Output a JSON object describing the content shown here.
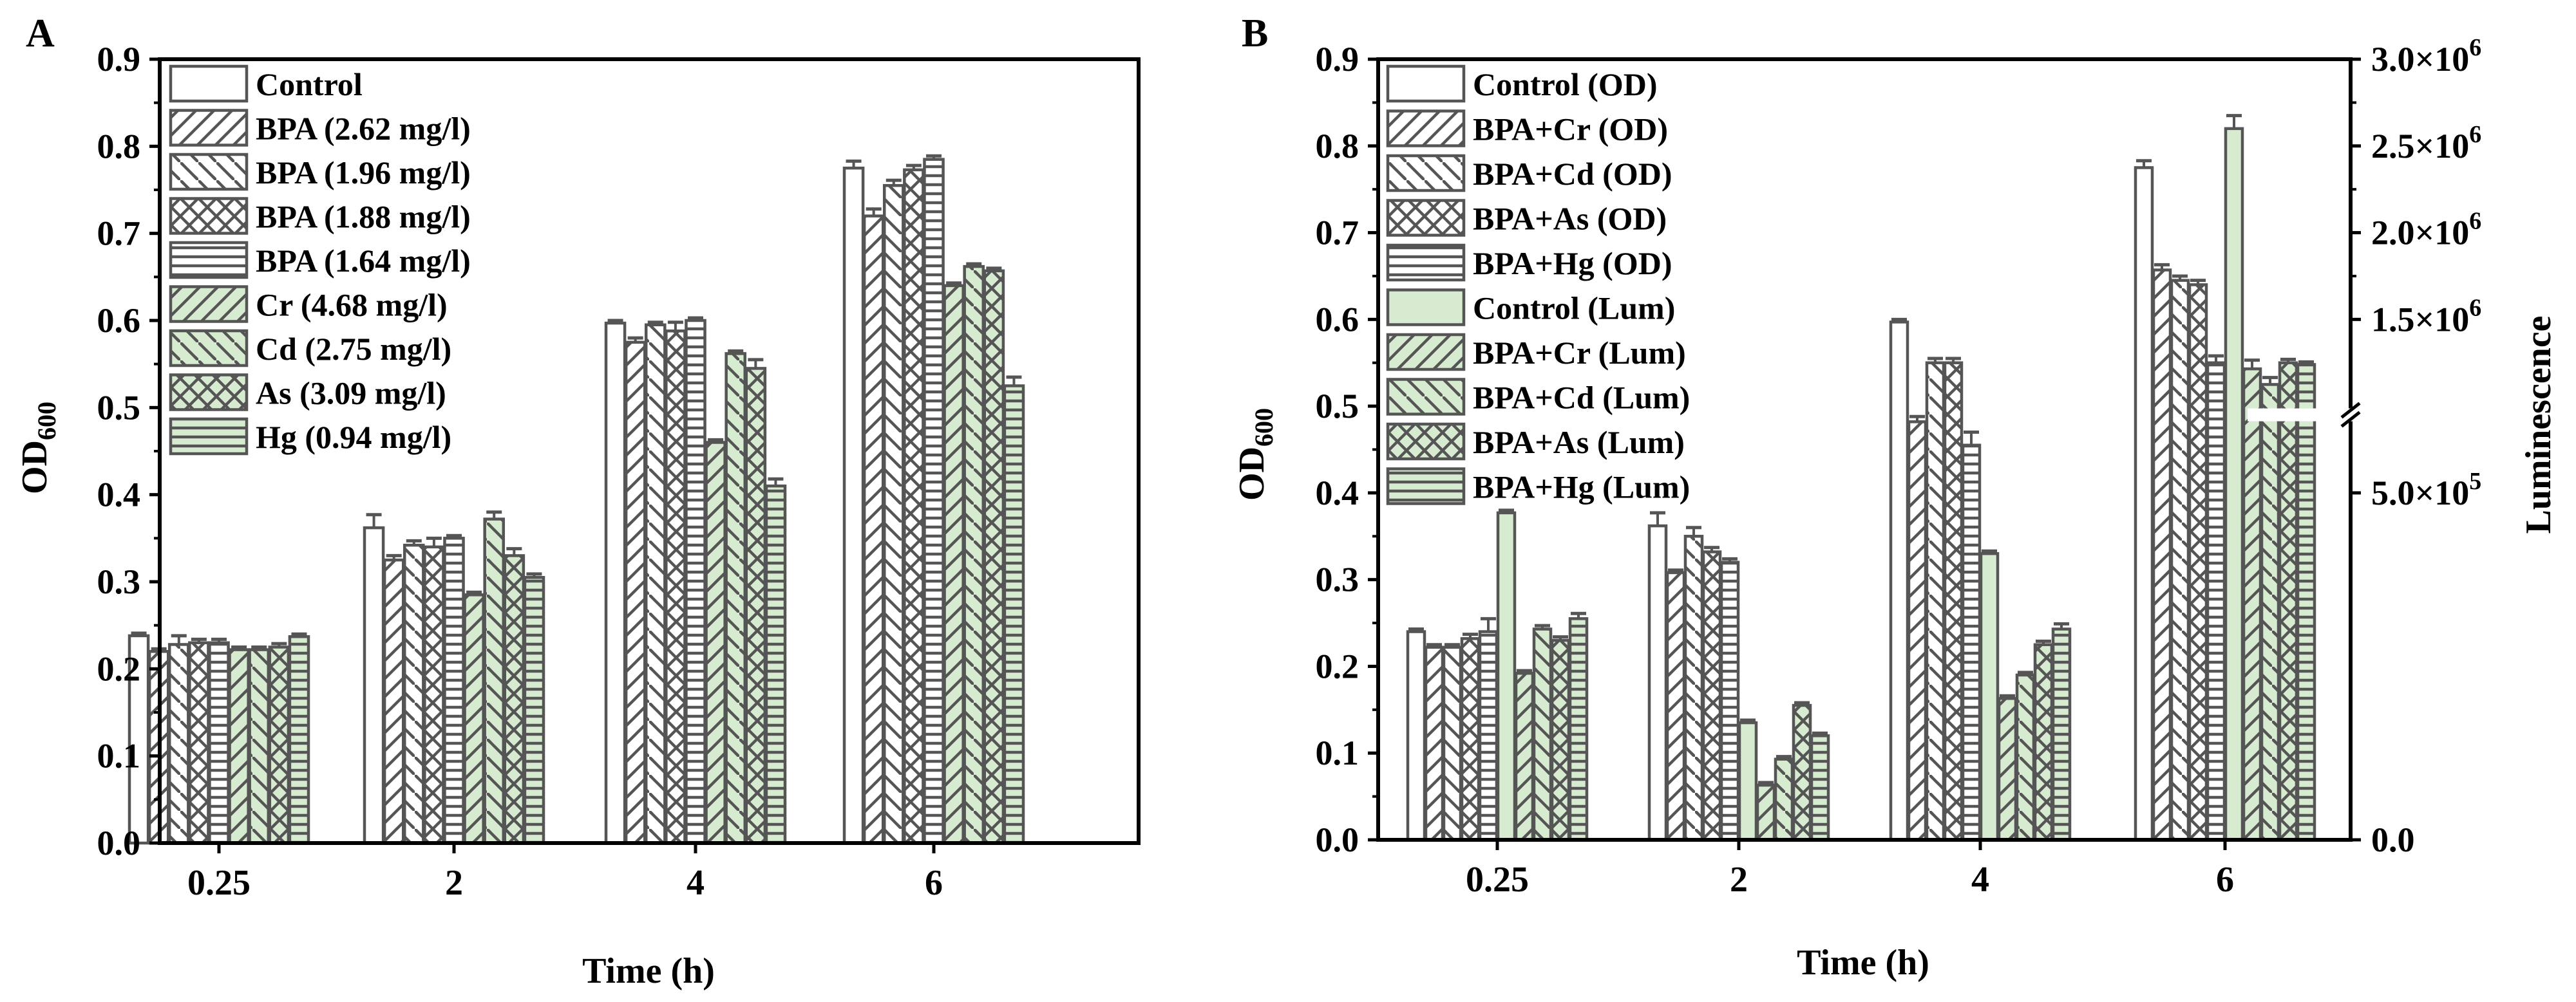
{
  "chart_data": [
    {
      "type": "bar",
      "panel_label": "A",
      "xlabel": "Time (h)",
      "ylabel": "OD",
      "ylabel_sub": "600",
      "ylim": [
        0,
        0.9
      ],
      "yticks": [
        "0.0",
        "0.1",
        "0.2",
        "0.3",
        "0.4",
        "0.5",
        "0.6",
        "0.7",
        "0.8",
        "0.9"
      ],
      "categories": [
        "0.25",
        "2",
        "4",
        "6"
      ],
      "legend_position": "top-left",
      "series": [
        {
          "name": "Control",
          "pattern": "empty",
          "fill": "white",
          "values": [
            0.238,
            0.362,
            0.597,
            0.775
          ],
          "errors": [
            0.003,
            0.015,
            0.003,
            0.008
          ]
        },
        {
          "name": "BPA (2.62 mg/l)",
          "pattern": "fdiag",
          "fill": "white",
          "values": [
            0.22,
            0.325,
            0.575,
            0.72
          ],
          "errors": [
            0.003,
            0.005,
            0.005,
            0.008
          ]
        },
        {
          "name": "BPA (1.96 mg/l)",
          "pattern": "bdiag",
          "fill": "white",
          "values": [
            0.228,
            0.342,
            0.595,
            0.755
          ],
          "errors": [
            0.01,
            0.005,
            0.003,
            0.006
          ]
        },
        {
          "name": "BPA (1.88 mg/l)",
          "pattern": "cross",
          "fill": "white",
          "values": [
            0.23,
            0.34,
            0.588,
            0.773
          ],
          "errors": [
            0.004,
            0.01,
            0.01,
            0.005
          ]
        },
        {
          "name": "BPA (1.64 mg/l)",
          "pattern": "hline",
          "fill": "white",
          "values": [
            0.23,
            0.35,
            0.6,
            0.785
          ],
          "errors": [
            0.004,
            0.003,
            0.003,
            0.004
          ]
        },
        {
          "name": "Cr (4.68 mg/l)",
          "pattern": "fdiag",
          "fill": "green",
          "values": [
            0.222,
            0.285,
            0.46,
            0.64
          ],
          "errors": [
            0.003,
            0.003,
            0.003,
            0.003
          ]
        },
        {
          "name": "Cd (2.75 mg/l)",
          "pattern": "bdiag",
          "fill": "green",
          "values": [
            0.222,
            0.372,
            0.562,
            0.662
          ],
          "errors": [
            0.003,
            0.008,
            0.003,
            0.003
          ]
        },
        {
          "name": "As (3.09 mg/l)",
          "pattern": "cross",
          "fill": "green",
          "values": [
            0.225,
            0.33,
            0.545,
            0.657
          ],
          "errors": [
            0.004,
            0.008,
            0.01,
            0.003
          ]
        },
        {
          "name": "Hg (0.94 mg/l)",
          "pattern": "hline",
          "fill": "green",
          "values": [
            0.237,
            0.305,
            0.41,
            0.525
          ],
          "errors": [
            0.003,
            0.004,
            0.008,
            0.01
          ]
        }
      ]
    },
    {
      "type": "bar",
      "panel_label": "B",
      "xlabel": "Time (h)",
      "ylabel": "OD",
      "ylabel_sub": "600",
      "y2label": "Luminescence",
      "ylim": [
        0,
        0.9
      ],
      "yticks": [
        "0.0",
        "0.1",
        "0.2",
        "0.3",
        "0.4",
        "0.5",
        "0.6",
        "0.7",
        "0.8",
        "0.9"
      ],
      "y2ticks": [
        {
          "label": "0.0",
          "at_od": 0.0,
          "sup": ""
        },
        {
          "label": "5.0×10",
          "at_od": 0.4,
          "sup": "5"
        },
        {
          "label": "1.5×10",
          "at_od": 0.6,
          "sup": "6"
        },
        {
          "label": "2.0×10",
          "at_od": 0.7,
          "sup": "6"
        },
        {
          "label": "2.5×10",
          "at_od": 0.8,
          "sup": "6"
        },
        {
          "label": "3.0×10",
          "at_od": 0.9,
          "sup": "6"
        }
      ],
      "y2_break_at_od": 0.49,
      "categories": [
        "0.25",
        "2",
        "4",
        "6"
      ],
      "legend_position": "top-left",
      "series": [
        {
          "name": "Control (OD)",
          "pattern": "empty",
          "fill": "white",
          "values": [
            0.24,
            0.362,
            0.597,
            0.775
          ],
          "errors": [
            0.003,
            0.015,
            0.003,
            0.008
          ]
        },
        {
          "name": "BPA+Cr (OD)",
          "pattern": "fdiag",
          "fill": "white",
          "values": [
            0.222,
            0.308,
            0.482,
            0.657
          ],
          "errors": [
            0.003,
            0.003,
            0.006,
            0.006
          ]
        },
        {
          "name": "BPA+Cd (OD)",
          "pattern": "bdiag",
          "fill": "white",
          "values": [
            0.222,
            0.35,
            0.55,
            0.645
          ],
          "errors": [
            0.003,
            0.01,
            0.005,
            0.005
          ]
        },
        {
          "name": "BPA+As (OD)",
          "pattern": "cross",
          "fill": "white",
          "values": [
            0.232,
            0.332,
            0.55,
            0.64
          ],
          "errors": [
            0.005,
            0.005,
            0.005,
            0.005
          ]
        },
        {
          "name": "BPA+Hg (OD)",
          "pattern": "hline",
          "fill": "white",
          "values": [
            0.24,
            0.32,
            0.455,
            0.55
          ],
          "errors": [
            0.015,
            0.004,
            0.015,
            0.008
          ]
        },
        {
          "name": "Control (Lum)",
          "pattern": "empty",
          "fill": "green",
          "values": [
            0.377,
            0.135,
            0.33,
            0.82
          ],
          "errors": [
            0.003,
            0.003,
            0.003,
            0.015
          ]
        },
        {
          "name": "BPA+Cr (Lum)",
          "pattern": "fdiag",
          "fill": "green",
          "values": [
            0.192,
            0.063,
            0.163,
            0.543
          ],
          "errors": [
            0.003,
            0.003,
            0.003,
            0.01
          ]
        },
        {
          "name": "BPA+Cd (Lum)",
          "pattern": "bdiag",
          "fill": "green",
          "values": [
            0.243,
            0.093,
            0.19,
            0.525
          ],
          "errors": [
            0.004,
            0.003,
            0.003,
            0.008
          ]
        },
        {
          "name": "BPA+As (Lum)",
          "pattern": "cross",
          "fill": "green",
          "values": [
            0.23,
            0.155,
            0.225,
            0.55
          ],
          "errors": [
            0.004,
            0.003,
            0.004,
            0.004
          ]
        },
        {
          "name": "BPA+Hg (Lum)",
          "pattern": "hline",
          "fill": "green",
          "values": [
            0.255,
            0.12,
            0.243,
            0.548
          ],
          "errors": [
            0.006,
            0.003,
            0.006,
            0.003
          ]
        }
      ]
    }
  ],
  "colors": {
    "axis": "#000000",
    "bar_edge": "#555555",
    "green_fill": "#d7ebd1",
    "white_fill": "#ffffff"
  }
}
